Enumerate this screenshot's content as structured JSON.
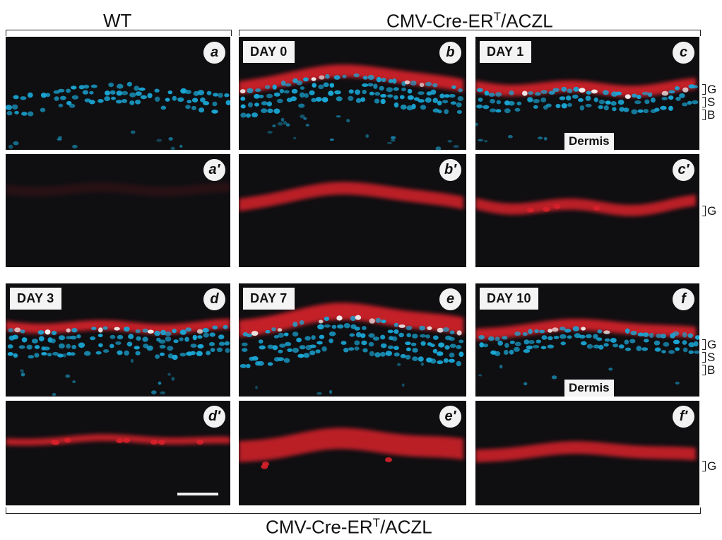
{
  "headers": {
    "wt": "WT",
    "top_right_prefix": "CMV-Cre-ER",
    "top_right_sup": "T",
    "top_right_suffix": "/ACZL",
    "bottom_prefix": "CMV-Cre-ER",
    "bottom_sup": "T",
    "bottom_suffix": "/ACZL"
  },
  "panels": {
    "a": {
      "letter": "a"
    },
    "b": {
      "letter": "b",
      "day": "DAY 0"
    },
    "c": {
      "letter": "c",
      "day": "DAY 1"
    },
    "a2": {
      "letter": "a′"
    },
    "b2": {
      "letter": "b′"
    },
    "c2": {
      "letter": "c′"
    },
    "d": {
      "letter": "d",
      "day": "DAY 3"
    },
    "e": {
      "letter": "e",
      "day": "DAY 7"
    },
    "f": {
      "letter": "f",
      "day": "DAY 10"
    },
    "d2": {
      "letter": "d′"
    },
    "e2": {
      "letter": "e′"
    },
    "f2": {
      "letter": "f′"
    }
  },
  "annotations": {
    "dermis": "Dermis",
    "layer_g": "G",
    "layer_s": "S",
    "layer_b": "B"
  },
  "colors": {
    "panel_background": "#0f0f12",
    "nuclei_stain": "#1aa7d6",
    "granular_stain": "#d8202a"
  }
}
